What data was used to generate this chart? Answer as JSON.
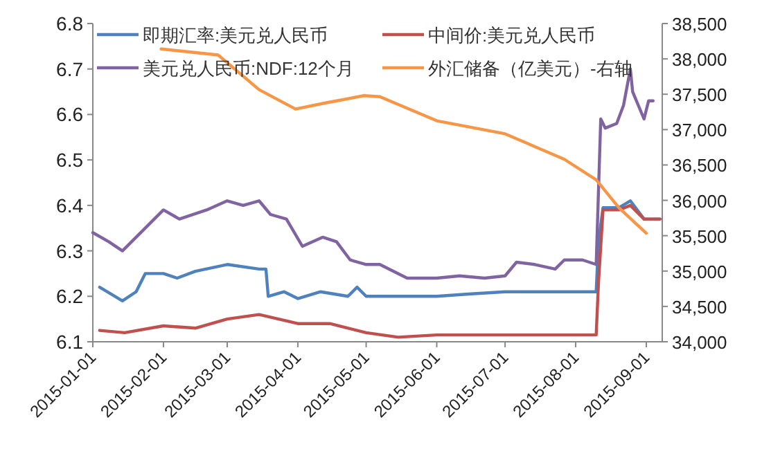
{
  "chart_data": {
    "type": "line",
    "legend": "top",
    "xlim": [
      "2015-01-01",
      "2015-09-08"
    ],
    "xticks": [
      "2015-01-01",
      "2015-02-01",
      "2015-03-01",
      "2015-04-01",
      "2015-05-01",
      "2015-06-01",
      "2015-07-01",
      "2015-08-01",
      "2015-09-01"
    ],
    "ylim": [
      6.1,
      6.8
    ],
    "yticks": [
      6.1,
      6.2,
      6.3,
      6.4,
      6.5,
      6.6,
      6.7,
      6.8
    ],
    "y2lim": [
      34000,
      38500
    ],
    "y2ticks": [
      {
        "value": 34000,
        "label": "34,000"
      },
      {
        "value": 34500,
        "label": "34,500"
      },
      {
        "value": 35000,
        "label": "35,000"
      },
      {
        "value": 35500,
        "label": "35,500"
      },
      {
        "value": 36000,
        "label": "36,000"
      },
      {
        "value": 36500,
        "label": "36,500"
      },
      {
        "value": 37000,
        "label": "37,000"
      },
      {
        "value": 37500,
        "label": "37,500"
      },
      {
        "value": 38000,
        "label": "38,000"
      },
      {
        "value": 38500,
        "label": "38,500"
      }
    ],
    "series": [
      {
        "name": "即期汇率:美元兑人民币",
        "color": "#4f81bd",
        "x": [
          "2015-01-04",
          "2015-01-14",
          "2015-01-20",
          "2015-01-24",
          "2015-02-01",
          "2015-02-07",
          "2015-02-15",
          "2015-03-01",
          "2015-03-15",
          "2015-03-18",
          "2015-03-19",
          "2015-03-26",
          "2015-04-01",
          "2015-04-11",
          "2015-04-23",
          "2015-04-27",
          "2015-05-01",
          "2015-05-15",
          "2015-06-01",
          "2015-06-15",
          "2015-07-01",
          "2015-07-15",
          "2015-08-01",
          "2015-08-10",
          "2015-08-11",
          "2015-08-13",
          "2015-08-20",
          "2015-08-25",
          "2015-08-28",
          "2015-08-31",
          "2015-09-07"
        ],
        "values": [
          6.22,
          6.19,
          6.21,
          6.25,
          6.25,
          6.24,
          6.255,
          6.27,
          6.26,
          6.26,
          6.2,
          6.21,
          6.195,
          6.21,
          6.2,
          6.22,
          6.2,
          6.2,
          6.2,
          6.205,
          6.21,
          6.21,
          6.21,
          6.21,
          6.32,
          6.395,
          6.395,
          6.41,
          6.39,
          6.37,
          6.37
        ]
      },
      {
        "name": "中间价:美元兑人民币",
        "color": "#c0504d",
        "x": [
          "2015-01-04",
          "2015-01-15",
          "2015-02-01",
          "2015-02-15",
          "2015-03-01",
          "2015-03-15",
          "2015-04-01",
          "2015-04-15",
          "2015-05-01",
          "2015-05-15",
          "2015-06-01",
          "2015-07-01",
          "2015-08-01",
          "2015-08-10",
          "2015-08-11",
          "2015-08-13",
          "2015-08-20",
          "2015-08-25",
          "2015-08-31",
          "2015-09-07"
        ],
        "values": [
          6.125,
          6.12,
          6.135,
          6.13,
          6.15,
          6.16,
          6.14,
          6.14,
          6.12,
          6.11,
          6.115,
          6.115,
          6.115,
          6.115,
          6.23,
          6.39,
          6.39,
          6.4,
          6.37,
          6.37
        ]
      },
      {
        "name": "美元兑人民币:NDF:12个月",
        "color": "#8064a2",
        "x": [
          "2015-01-01",
          "2015-01-08",
          "2015-01-14",
          "2015-01-20",
          "2015-01-26",
          "2015-02-01",
          "2015-02-08",
          "2015-02-20",
          "2015-03-01",
          "2015-03-08",
          "2015-03-15",
          "2015-03-20",
          "2015-03-27",
          "2015-04-03",
          "2015-04-12",
          "2015-04-18",
          "2015-04-24",
          "2015-05-01",
          "2015-05-07",
          "2015-05-19",
          "2015-06-01",
          "2015-06-11",
          "2015-06-22",
          "2015-07-01",
          "2015-07-06",
          "2015-07-14",
          "2015-07-23",
          "2015-07-27",
          "2015-08-04",
          "2015-08-10",
          "2015-08-12",
          "2015-08-14",
          "2015-08-19",
          "2015-08-22",
          "2015-08-25",
          "2015-08-26",
          "2015-08-31",
          "2015-09-02",
          "2015-09-04"
        ],
        "values": [
          6.34,
          6.32,
          6.3,
          6.33,
          6.36,
          6.39,
          6.37,
          6.39,
          6.41,
          6.4,
          6.41,
          6.38,
          6.37,
          6.31,
          6.33,
          6.32,
          6.28,
          6.27,
          6.27,
          6.24,
          6.24,
          6.245,
          6.24,
          6.245,
          6.275,
          6.27,
          6.26,
          6.28,
          6.28,
          6.27,
          6.59,
          6.57,
          6.58,
          6.62,
          6.7,
          6.65,
          6.59,
          6.63,
          6.63
        ]
      },
      {
        "name": "外汇储备（亿美元）-右轴",
        "color": "#f79646",
        "axis": "y2",
        "x": [
          "2015-01-31",
          "2015-02-25",
          "2015-03-15",
          "2015-03-31",
          "2015-04-12",
          "2015-04-30",
          "2015-05-07",
          "2015-06-01",
          "2015-07-01",
          "2015-07-27",
          "2015-08-10",
          "2015-08-20",
          "2015-09-01"
        ],
        "values": [
          38140,
          38055,
          37565,
          37290,
          37370,
          37480,
          37465,
          37125,
          36940,
          36580,
          36290,
          35895,
          35535
        ]
      }
    ]
  }
}
